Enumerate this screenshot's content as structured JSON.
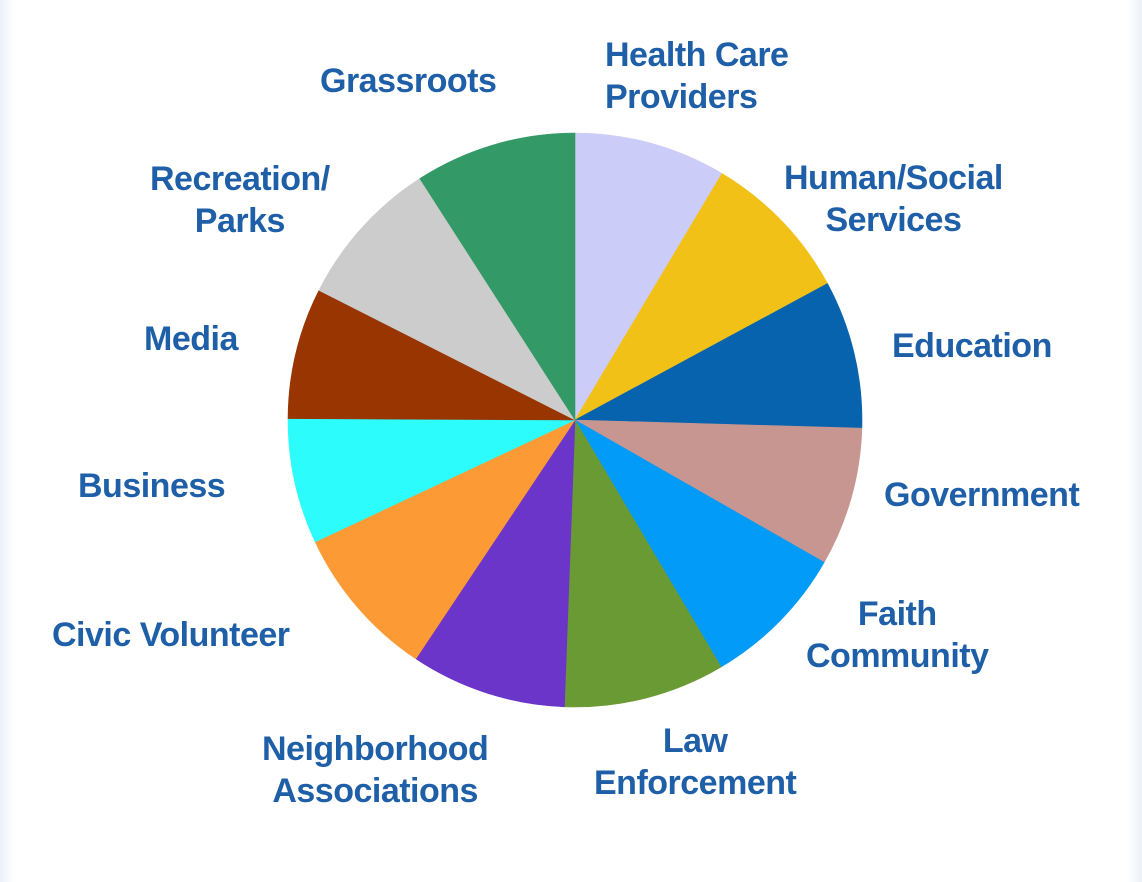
{
  "chart_data": {
    "type": "pie",
    "title": "",
    "slices": [
      {
        "label": "Health Care\nProviders",
        "value": 8.0,
        "color": "#ccccf8"
      },
      {
        "label": "Human/Social\nServices",
        "value": 8.0,
        "color": "#f2c118"
      },
      {
        "label": "Education",
        "value": 7.8,
        "color": "#0763ad"
      },
      {
        "label": "Government",
        "value": 7.3,
        "color": "#c89690"
      },
      {
        "label": "Faith\nCommunity",
        "value": 7.7,
        "color": "#039bf8"
      },
      {
        "label": "Law\nEnforcement",
        "value": 8.5,
        "color": "#6a9a33"
      },
      {
        "label": "Neighborhood\nAssociations",
        "value": 8.2,
        "color": "#6a35c8"
      },
      {
        "label": "Civic Volunteer",
        "value": 8.1,
        "color": "#fc9a35"
      },
      {
        "label": "Business",
        "value": 6.6,
        "color": "#2dfcfc"
      },
      {
        "label": "Media",
        "value": 6.9,
        "color": "#983500"
      },
      {
        "label": "Recreation/\nParks",
        "value": 7.9,
        "color": "#cccccc"
      },
      {
        "label": "Grassroots",
        "value": 8.5,
        "color": "#339966"
      }
    ],
    "legend": "none"
  }
}
